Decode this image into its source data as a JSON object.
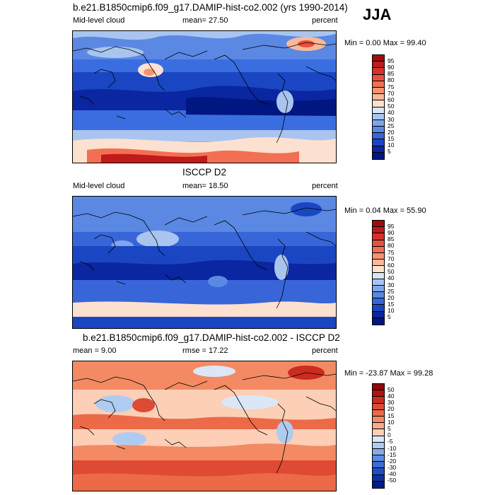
{
  "season": "JJA",
  "panels": [
    {
      "title": "b.e21.B1850cmip6.f09_g17.DAMIP-hist-co2.002 (yrs 1990-2014)",
      "left_label": "Mid-level cloud",
      "mid_label": "mean=  27.50",
      "right_label": "percent",
      "minmax": "Min =   0.00 Max =  99.40",
      "levels": [
        "95",
        "90",
        "85",
        "80",
        "75",
        "70",
        "60",
        "50",
        "40",
        "30",
        "25",
        "20",
        "15",
        "10",
        "5"
      ],
      "colors": [
        "#9e0d0d",
        "#c01a1a",
        "#d8302a",
        "#e8513d",
        "#f26f54",
        "#f7926f",
        "#fab89a",
        "#fde1d0",
        "#d9e6f7",
        "#a9c5ef",
        "#7ea6ea",
        "#5a88e3",
        "#3866d8",
        "#1a46c3",
        "#0a26a0",
        "#001680"
      ]
    },
    {
      "title": "ISCCP D2",
      "left_label": "Mid-level cloud",
      "mid_label": "mean=  18.50",
      "right_label": "percent",
      "minmax": "Min =   0.04 Max =  55.90",
      "levels": [
        "95",
        "90",
        "85",
        "80",
        "75",
        "70",
        "60",
        "50",
        "40",
        "30",
        "25",
        "20",
        "15",
        "10",
        "5"
      ],
      "colors": [
        "#9e0d0d",
        "#c01a1a",
        "#d8302a",
        "#e8513d",
        "#f26f54",
        "#f7926f",
        "#fab89a",
        "#fde1d0",
        "#d9e6f7",
        "#a9c5ef",
        "#7ea6ea",
        "#5a88e3",
        "#3866d8",
        "#1a46c3",
        "#0a26a0",
        "#001680"
      ]
    },
    {
      "title": "b.e21.B1850cmip6.f09_g17.DAMIP-hist-co2.002 - ISCCP D2",
      "left_label": "mean =   9.00",
      "mid_label": "rmse =  17.22",
      "right_label": "percent",
      "minmax": "Min = -23.87 Max =  99.28",
      "levels": [
        "50",
        "40",
        "30",
        "20",
        "15",
        "10",
        "5",
        "0",
        "-5",
        "-10",
        "-15",
        "-20",
        "-30",
        "-40",
        "-50"
      ],
      "colors": [
        "#8a0a0a",
        "#b3140f",
        "#cc2b1f",
        "#de4a33",
        "#ec6a48",
        "#f38a63",
        "#f8ab85",
        "#fccfb6",
        "#dbe7f7",
        "#b0cbf0",
        "#86abea",
        "#5f8ce2",
        "#3c6cd6",
        "#1f4ec4",
        "#0c31a6",
        "#001c82"
      ]
    }
  ]
}
